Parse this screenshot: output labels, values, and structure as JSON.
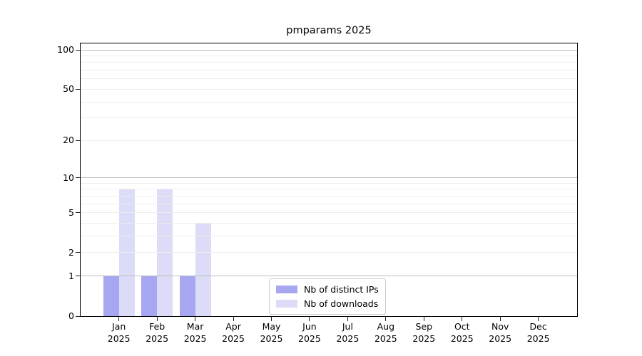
{
  "chart_data": {
    "type": "bar",
    "title": "pmparams 2025",
    "x": {
      "months": [
        "Jan",
        "Feb",
        "Mar",
        "Apr",
        "May",
        "Jun",
        "Jul",
        "Aug",
        "Sep",
        "Oct",
        "Nov",
        "Dec"
      ],
      "year": "2025"
    },
    "series": [
      {
        "name": "Nb of distinct IPs",
        "color": "#a6a6f1",
        "values": [
          1,
          1,
          1,
          0,
          0,
          0,
          0,
          0,
          0,
          0,
          0,
          0
        ]
      },
      {
        "name": "Nb of downloads",
        "color": "#dcdcf8",
        "values": [
          8,
          8,
          4,
          0,
          0,
          0,
          0,
          0,
          0,
          0,
          0,
          0
        ]
      }
    ],
    "y_axis": {
      "scale": "log1p",
      "ylim": [
        0,
        112
      ],
      "tick_values": [
        0,
        1,
        2,
        5,
        10,
        20,
        50,
        100
      ],
      "major_grid_values": [
        1,
        10,
        100
      ],
      "minor_grid_values": [
        2,
        3,
        4,
        5,
        6,
        7,
        8,
        9,
        20,
        30,
        40,
        50,
        60,
        70,
        80,
        90
      ]
    },
    "legend": {
      "position": "lower center",
      "items": [
        "Nb of distinct IPs",
        "Nb of downloads"
      ]
    },
    "grid": true
  },
  "colors": {
    "major_grid": "#bdbdbd",
    "minor_grid": "#ededed",
    "spine": "#000000",
    "text": "#000000",
    "legend_border": "#cccccc"
  }
}
